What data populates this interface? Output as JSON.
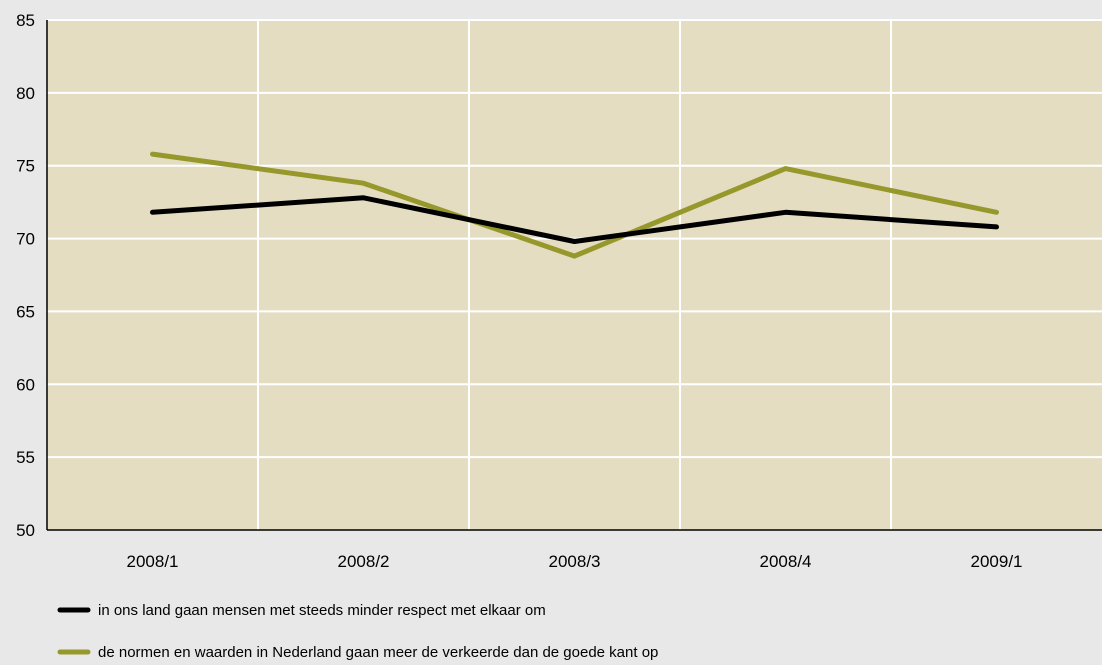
{
  "chart_data": {
    "type": "line",
    "title": "",
    "xlabel": "",
    "ylabel": "",
    "categories": [
      "2008/1",
      "2008/2",
      "2008/3",
      "2008/4",
      "2009/1"
    ],
    "ylim": [
      50,
      85
    ],
    "yticks": [
      50,
      55,
      60,
      65,
      70,
      75,
      80,
      85
    ],
    "grid": true,
    "legend_position": "bottom-left",
    "series": [
      {
        "name": "in ons land gaan mensen met steeds minder respect met elkaar om",
        "color": "#000000",
        "values": [
          71.8,
          72.8,
          69.8,
          71.8,
          70.8
        ]
      },
      {
        "name": "de normen en waarden in Nederland gaan meer de verkeerde dan de goede kant op",
        "color": "#96982c",
        "values": [
          75.8,
          73.8,
          68.8,
          74.8,
          71.8
        ]
      }
    ],
    "colors": {
      "plot_background": "#e4ddc2",
      "page_background": "#e8e8e8",
      "grid": "#ffffff",
      "axis": "#000000"
    }
  }
}
